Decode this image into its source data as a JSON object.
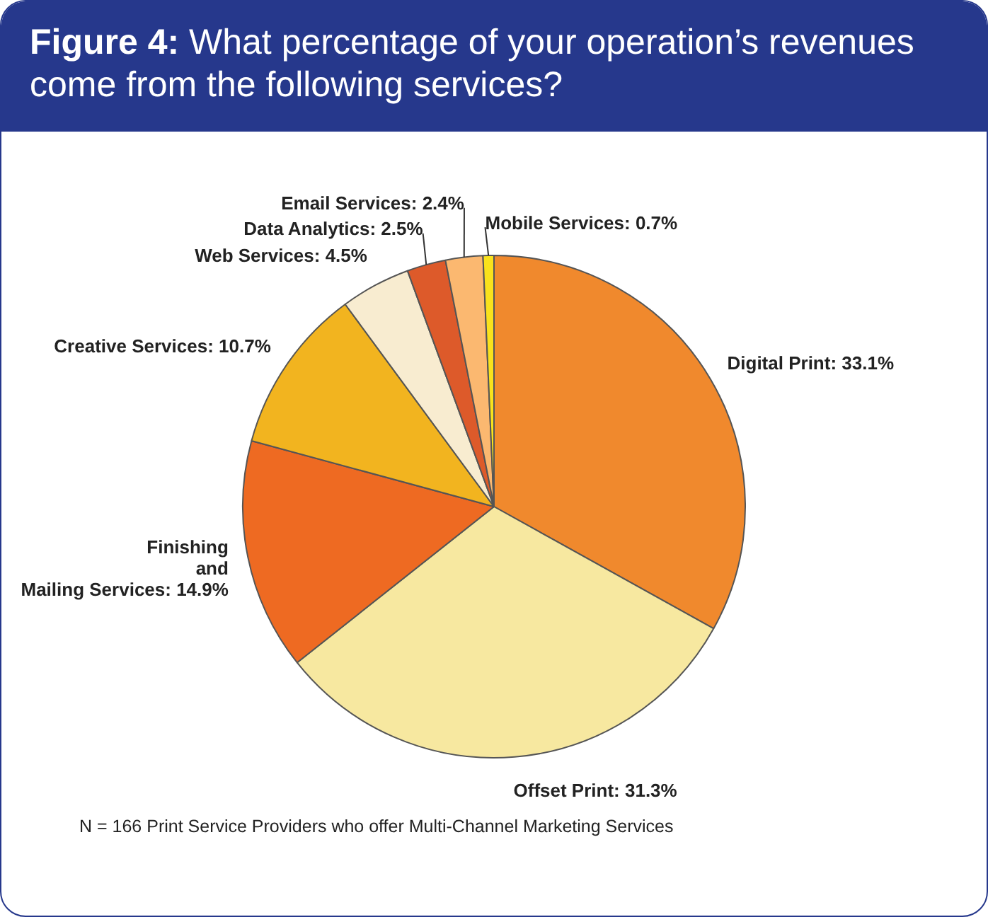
{
  "chart_data": {
    "type": "pie",
    "title": "Figure 4: What percentage of your operation’s revenues come from the following services?",
    "categories": [
      "Digital Print",
      "Offset Print",
      "Finishing and Mailing Services",
      "Creative Services",
      "Web Services",
      "Data Analytics",
      "Email Services",
      "Mobile Services"
    ],
    "values": [
      33.1,
      31.3,
      14.9,
      10.7,
      4.5,
      2.5,
      2.4,
      0.7
    ],
    "value_labels": [
      "33.1%",
      "31.3%",
      "14.9%",
      "10.7%",
      "4.5%",
      "2.5%",
      "2.4%",
      "0.7%"
    ],
    "colors": [
      "#f0892d",
      "#f7e8a0",
      "#ee6a22",
      "#f2b41f",
      "#f8ecd0",
      "#dd5a2a",
      "#fbb870",
      "#f9e21c"
    ],
    "legend": false,
    "annotations": [
      "N = 166 Print Service Providers who offer Multi-Channel Marketing Services"
    ]
  }
}
